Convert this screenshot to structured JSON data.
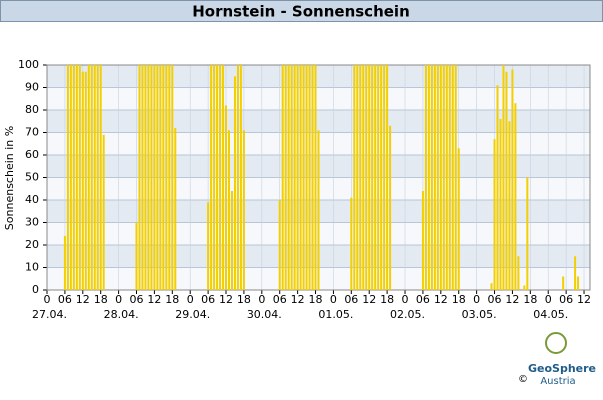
{
  "chart_data": {
    "type": "bar",
    "title": "Hornstein - Sonnenschein",
    "y_label": "Sonnenschein in %",
    "x": [
      6,
      7,
      8,
      9,
      10,
      11,
      12,
      13,
      14,
      15,
      16,
      17,
      18,
      19,
      30,
      31,
      32,
      33,
      34,
      35,
      36,
      37,
      38,
      39,
      40,
      41,
      42,
      43,
      54,
      55,
      56,
      57,
      58,
      59,
      60,
      61,
      62,
      63,
      64,
      65,
      66,
      78,
      79,
      80,
      81,
      82,
      83,
      84,
      85,
      86,
      87,
      88,
      89,
      90,
      91,
      102,
      103,
      104,
      105,
      106,
      107,
      108,
      109,
      110,
      111,
      112,
      113,
      114,
      115,
      126,
      127,
      128,
      129,
      130,
      131,
      132,
      133,
      134,
      135,
      136,
      137,
      138,
      149,
      150,
      151,
      152,
      153,
      154,
      155,
      156,
      157,
      158,
      160,
      161,
      173,
      177,
      178
    ],
    "values": [
      24,
      100,
      100,
      100,
      100,
      100,
      97,
      97,
      100,
      100,
      100,
      100,
      100,
      69,
      30,
      100,
      100,
      100,
      100,
      100,
      100,
      100,
      100,
      100,
      100,
      100,
      100,
      72,
      39,
      100,
      100,
      100,
      100,
      100,
      82,
      71,
      44,
      95,
      100,
      100,
      71,
      40,
      100,
      100,
      100,
      100,
      100,
      100,
      100,
      100,
      100,
      100,
      100,
      100,
      71,
      41,
      100,
      100,
      100,
      100,
      100,
      100,
      100,
      100,
      100,
      100,
      100,
      100,
      73,
      44,
      100,
      100,
      100,
      100,
      100,
      100,
      100,
      100,
      100,
      100,
      100,
      63,
      3,
      67,
      91,
      76,
      100,
      97,
      75,
      98,
      83,
      15,
      2,
      50,
      6,
      15,
      6
    ],
    "color": "#f2cf00",
    "xlim": [
      0,
      182
    ],
    "ylim": [
      0,
      100
    ],
    "yticks": [
      0,
      10,
      20,
      30,
      40,
      50,
      60,
      70,
      80,
      90,
      100
    ],
    "xticks": [
      0,
      {
        "value": 6,
        "label": "06"
      },
      12,
      18,
      {
        "value": 24,
        "label": "0"
      },
      {
        "value": 30,
        "label": "06"
      },
      {
        "value": 36,
        "label": "12"
      },
      {
        "value": 42,
        "label": "18"
      },
      {
        "value": 48,
        "label": "0"
      },
      {
        "value": 54,
        "label": "06"
      },
      {
        "value": 60,
        "label": "12"
      },
      {
        "value": 66,
        "label": "18"
      },
      {
        "value": 72,
        "label": "0"
      },
      {
        "value": 78,
        "label": "06"
      },
      {
        "value": 84,
        "label": "12"
      },
      {
        "value": 90,
        "label": "18"
      },
      {
        "value": 96,
        "label": "0"
      },
      {
        "value": 102,
        "label": "06"
      },
      {
        "value": 108,
        "label": "12"
      },
      {
        "value": 114,
        "label": "18"
      },
      {
        "value": 120,
        "label": "0"
      },
      {
        "value": 126,
        "label": "06"
      },
      {
        "value": 132,
        "label": "12"
      },
      {
        "value": 138,
        "label": "18"
      },
      {
        "value": 144,
        "label": "0"
      },
      {
        "value": 150,
        "label": "06"
      },
      {
        "value": 156,
        "label": "12"
      },
      {
        "value": 162,
        "label": "18"
      },
      {
        "value": 168,
        "label": "0"
      },
      {
        "value": 174,
        "label": "06"
      },
      {
        "value": 180,
        "label": "12"
      }
    ],
    "date_ticks": [
      {
        "value": 0,
        "label": "27.04."
      },
      {
        "value": 24,
        "label": "28.04."
      },
      {
        "value": 48,
        "label": "29.04."
      },
      {
        "value": 72,
        "label": "30.04."
      },
      {
        "value": 96,
        "label": "01.05."
      },
      {
        "value": 120,
        "label": "02.05."
      },
      {
        "value": 144,
        "label": "03.05."
      },
      {
        "value": 168,
        "label": "04.05."
      }
    ],
    "grid": true
  },
  "logo": {
    "name": "GeoSphere",
    "sub": "Austria",
    "copyright": "©"
  }
}
